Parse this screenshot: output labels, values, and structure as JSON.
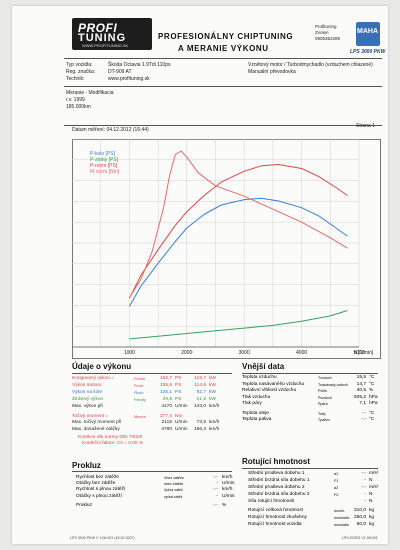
{
  "header": {
    "logo_line1": "PROFI",
    "logo_line2": "TUNING",
    "logo_url": "WWW.PROFITUNING.SK",
    "title_line1": "PROFESIONÁLNY CHIPTUNING",
    "title_line2": "A MERANIE VÝKONU",
    "contact": [
      "Profituning",
      "Zvolen",
      "0905352289"
    ],
    "maha_logo": "MAHA",
    "maha_sub": "LPS 3000 PKW"
  },
  "vehicle": {
    "type_label": "Typ vozidla:",
    "type_value": "Škoda Octavia 1.9Tdi 110ps",
    "reg_label": "Reg. značka:",
    "reg_value": "DT-909 AT",
    "tech_label": "Technik:",
    "tech_value": "www.profituning.sk",
    "engine": "Vznětový motor / Turbodmychadlo (vzduchem chlazené)",
    "gearbox": "Manuální převodovka",
    "notes": [
      "Meranie - Modifikacia",
      "r.v. 1999",
      "185.000km"
    ]
  },
  "meta": {
    "date_label": "Datum měření: 04.12.2012 (16:44)",
    "page_label": "Strana 1"
  },
  "chart_data": {
    "type": "line",
    "xlabel": "n [1/min]",
    "xlim": [
      0,
      5000
    ],
    "xticks": [
      1000,
      2000,
      3000,
      4000,
      5000
    ],
    "grid": true,
    "legend_position": "top-left",
    "legend": [
      {
        "name": "P-kolo [PS]",
        "color": "#3a7fd6"
      },
      {
        "name": "P-ztráty [PS]",
        "color": "#3aa05a"
      },
      {
        "name": "P-norm [PS]",
        "color": "#d24a4a"
      },
      {
        "name": "M-norm [Nm]",
        "color": "#e46a6a"
      }
    ],
    "series": [
      {
        "name": "P-kolo [PS]",
        "color": "#3a7fd6",
        "x": [
          1000,
          1200,
          1500,
          1800,
          2000,
          2300,
          2600,
          3000,
          3300,
          3600,
          4000,
          4300,
          4600,
          4800
        ],
        "y": [
          30,
          45,
          62,
          78,
          88,
          98,
          105,
          109,
          110,
          108,
          103,
          97,
          88,
          82
        ]
      },
      {
        "name": "P-ztráty [PS]",
        "color": "#3aa05a",
        "x": [
          1000,
          1500,
          2000,
          2500,
          3000,
          3500,
          4000,
          4500,
          4800
        ],
        "y": [
          6,
          8,
          10,
          12,
          14,
          16,
          19,
          23,
          27
        ]
      },
      {
        "name": "P-norm [PS]",
        "color": "#d24a4a",
        "x": [
          1000,
          1200,
          1500,
          1800,
          2000,
          2300,
          2600,
          3000,
          3300,
          3600,
          4000,
          4300,
          4600,
          4800
        ],
        "y": [
          36,
          53,
          72,
          90,
          100,
          112,
          122,
          130,
          134,
          135,
          132,
          126,
          118,
          112
        ]
      },
      {
        "name": "M-norm [Nm]",
        "color": "#e46a6a",
        "x": [
          1000,
          1200,
          1400,
          1600,
          1700,
          1800,
          1900,
          2000,
          2200,
          2500,
          3000,
          3500,
          4000,
          4500,
          4800
        ],
        "y": [
          95,
          130,
          185,
          270,
          330,
          370,
          377,
          365,
          335,
          310,
          290,
          265,
          240,
          210,
          190
        ]
      }
    ],
    "scale_note": "Power curves in PS mapped to the same vertical scale as Nm for display"
  },
  "performance": {
    "title": "Údaje o výkonu",
    "rows": [
      {
        "label": "Korigovaný výkon =",
        "sym": "Pnorm",
        "v1": "162,7",
        "u1": "PS",
        "v2": "119,7",
        "u2": "kW",
        "color": "red"
      },
      {
        "label": "Výkon motoru",
        "sym": "Pmot",
        "v1": "155,9",
        "u1": "PS",
        "v2": "114,6",
        "u2": "kW",
        "color": "red"
      },
      {
        "label": "Výkon na kole",
        "sym": "Pkolo",
        "v1": "126,1",
        "u1": "PS",
        "v2": "92,7",
        "u2": "kW",
        "color": "blu"
      },
      {
        "label": "Ztrátový výkon",
        "sym": "Pztráty",
        "v1": "29,8",
        "u1": "PS",
        "v2": "21,9",
        "u2": "kW",
        "color": "grn"
      },
      {
        "label": "Max. výkon při",
        "sym": "",
        "v1": "4170",
        "u1": "U/min",
        "v2": "143,0",
        "u2": "km/h",
        "color": ""
      },
      {
        "label": "Točivý moment =",
        "sym": "Mnorm",
        "v1": "377,4",
        "u1": "Nm",
        "v2": "",
        "u2": "",
        "color": "red"
      },
      {
        "label": "Max. točivý moment při",
        "sym": "",
        "v1": "2115",
        "u1": "U/min",
        "v2": "73,5",
        "u2": "km/h",
        "color": ""
      },
      {
        "label": "Max. dosažené otáčky",
        "sym": "",
        "v1": "4780",
        "u1": "U/min",
        "v2": "166,3",
        "u2": "km/h",
        "color": ""
      }
    ],
    "norm_note": "Korekce dle normy DIN 70020",
    "norm_factor": "Korekční faktor:  Cs = 0,00 %"
  },
  "external": {
    "title": "Vnější data",
    "rows": [
      {
        "label": "Teplota vzduchu",
        "sym": "Tvzduch",
        "value": "15,5",
        "unit": "°C"
      },
      {
        "label": "Teplota nasávaného vzduchu",
        "sym": "Tnasávaný vzduch",
        "value": "14,7",
        "unit": "°C"
      },
      {
        "label": "Relativní vlhkost vzduchu",
        "sym": "Pvlhk.",
        "value": "40,5",
        "unit": "%"
      },
      {
        "label": "Tlak vzduchu",
        "sym": "Pvzduch",
        "value": "935,2",
        "unit": "hPa"
      },
      {
        "label": "Tlak páry",
        "sym": "Ppára",
        "value": "7,1",
        "unit": "hPa"
      },
      {
        "label": "Teplota oleje",
        "sym": "Tolej",
        "value": "-.-",
        "unit": "°C"
      },
      {
        "label": "Teplota paliva",
        "sym": "Tpalivo",
        "value": "-.-",
        "unit": "°C"
      }
    ]
  },
  "prokluz": {
    "title": "Prokluz",
    "rows": [
      {
        "label": "Rychlost bez zátěže",
        "sym": "Vbez zátěže",
        "value": "-.-",
        "unit": "km/h"
      },
      {
        "label": "Otáčky bez zátěže",
        "sym": "nbez zátěže",
        "value": "-",
        "unit": "U/min"
      },
      {
        "label": "Rychlost s plnou zátěží",
        "sym": "Vplná zátěž",
        "value": "-.-",
        "unit": "km/h"
      },
      {
        "label": "Otáčky s plnou zátěží",
        "sym": "nplná zátěž",
        "value": "-",
        "unit": "U/min"
      },
      {
        "label": "Prokluz",
        "sym": "",
        "value": "-.-",
        "unit": "%"
      }
    ]
  },
  "rotating": {
    "title": "Rotující hmotnost",
    "rows": [
      {
        "label": "Střední prodleva dobehu 1",
        "sym": "a1",
        "value": "-.-",
        "unit": "m/s²"
      },
      {
        "label": "Střední brzdná síla dobehu 1",
        "sym": "F1",
        "value": "-",
        "unit": "N"
      },
      {
        "label": "Střední prodleva dobehu 2",
        "sym": "a2",
        "value": "-.-",
        "unit": "m/s²"
      },
      {
        "label": "Střední brzdná síla dobehu 2",
        "sym": "F2",
        "value": "-",
        "unit": "N"
      },
      {
        "label": "Síla rotující hmotnosti",
        "sym": "",
        "value": "-",
        "unit": "N"
      },
      {
        "label": "Rotující celková hmotnost",
        "sym": "mcelk.",
        "value": "310,0",
        "unit": "kg"
      },
      {
        "label": "Rotující hmotnost zkušebny",
        "sym": "mzkušeb.",
        "value": "250,0",
        "unit": "kg"
      },
      {
        "label": "Rotující hmotnost vozidla",
        "sym": "mvozidlo",
        "value": "60,0",
        "unit": "kg"
      }
    ]
  },
  "footer": {
    "left": "LPS 3000 PKW V 1.06.001 (16.02.2007)",
    "right": "LPS-EDRG V1.08.001"
  }
}
